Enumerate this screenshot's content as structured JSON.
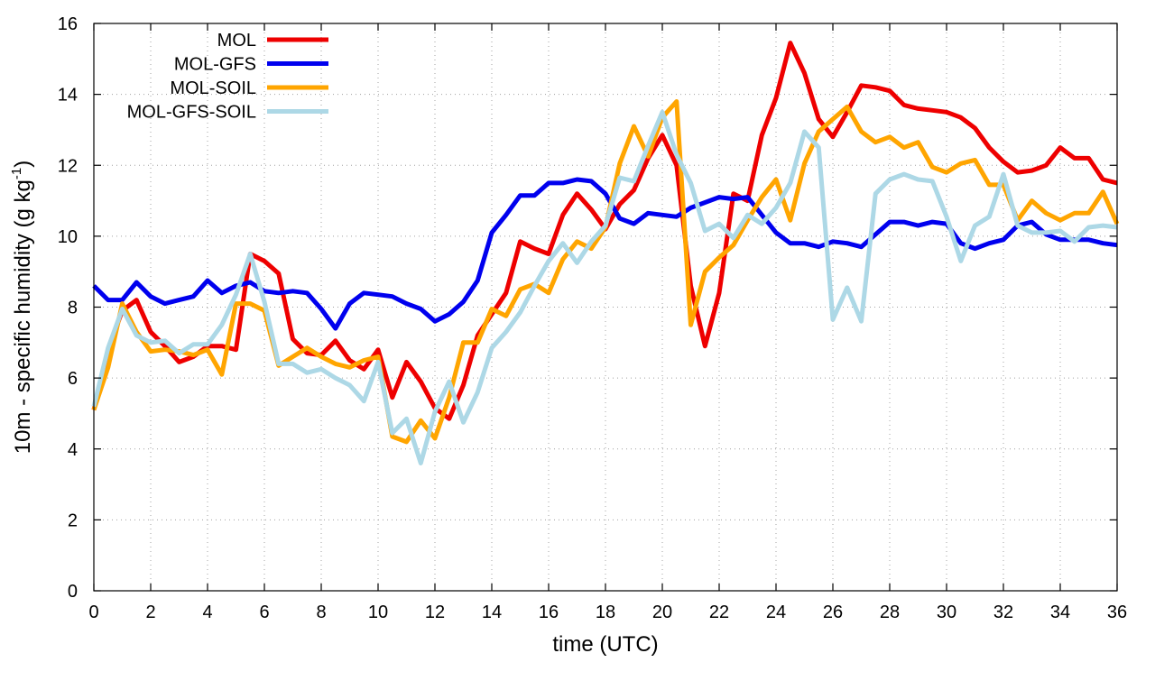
{
  "chart_data": {
    "type": "line",
    "title": "",
    "xlabel": "time (UTC)",
    "ylabel": {
      "main": "10m - specific humidity (g kg",
      "superscript": "-1",
      "suffix": ")"
    },
    "xlim": [
      0,
      36
    ],
    "ylim": [
      0,
      16
    ],
    "xticks": [
      0,
      2,
      4,
      6,
      8,
      10,
      12,
      14,
      16,
      18,
      20,
      22,
      24,
      26,
      28,
      30,
      32,
      34,
      36
    ],
    "yticks": [
      0,
      2,
      4,
      6,
      8,
      10,
      12,
      14,
      16
    ],
    "grid": true,
    "legend_position": "top-left",
    "x": [
      0,
      0.5,
      1,
      1.5,
      2,
      2.5,
      3,
      3.5,
      4,
      4.5,
      5,
      5.5,
      6,
      6.5,
      7,
      7.5,
      8,
      8.5,
      9,
      9.5,
      10,
      10.5,
      11,
      11.5,
      12,
      12.5,
      13,
      13.5,
      14,
      14.5,
      15,
      15.5,
      16,
      16.5,
      17,
      17.5,
      18,
      18.5,
      19,
      19.5,
      20,
      20.5,
      21,
      21.5,
      22,
      22.5,
      23,
      23.5,
      24,
      24.5,
      25,
      25.5,
      26,
      26.5,
      27,
      27.5,
      28,
      28.5,
      29,
      29.5,
      30,
      30.5,
      31,
      31.5,
      32,
      32.5,
      33,
      33.5,
      34,
      34.5,
      35,
      35.5,
      36
    ],
    "series": [
      {
        "name": "MOL",
        "color": "#ee0000",
        "values": [
          5.1,
          6.8,
          7.9,
          8.2,
          7.3,
          6.9,
          6.45,
          6.6,
          6.9,
          6.9,
          6.8,
          9.5,
          9.3,
          8.95,
          7.1,
          6.7,
          6.65,
          7.05,
          6.5,
          6.25,
          6.8,
          5.45,
          6.45,
          5.9,
          5.15,
          4.85,
          5.8,
          7.2,
          7.8,
          8.4,
          9.85,
          9.65,
          9.5,
          10.6,
          11.2,
          10.75,
          10.2,
          10.9,
          11.3,
          12.2,
          12.85,
          12.0,
          8.6,
          6.9,
          8.4,
          11.2,
          11.0,
          12.85,
          13.9,
          15.45,
          14.6,
          13.3,
          12.8,
          13.5,
          14.25,
          14.2,
          14.1,
          13.7,
          13.6,
          13.55,
          13.5,
          13.35,
          13.05,
          12.5,
          12.1,
          11.8,
          11.85,
          12.0,
          12.5,
          12.2,
          12.2,
          11.6,
          11.5
        ]
      },
      {
        "name": "MOL-GFS",
        "color": "#0000ee",
        "values": [
          8.6,
          8.2,
          8.2,
          8.7,
          8.3,
          8.1,
          8.2,
          8.3,
          8.75,
          8.4,
          8.6,
          8.7,
          8.45,
          8.4,
          8.45,
          8.4,
          7.95,
          7.4,
          8.1,
          8.4,
          8.35,
          8.3,
          8.1,
          7.95,
          7.6,
          7.8,
          8.15,
          8.75,
          10.1,
          10.6,
          11.15,
          11.15,
          11.5,
          11.5,
          11.6,
          11.55,
          11.2,
          10.5,
          10.35,
          10.65,
          10.6,
          10.55,
          10.8,
          10.95,
          11.1,
          11.05,
          11.1,
          10.6,
          10.1,
          9.8,
          9.8,
          9.7,
          9.85,
          9.8,
          9.7,
          10.05,
          10.4,
          10.4,
          10.3,
          10.4,
          10.35,
          9.8,
          9.65,
          9.8,
          9.9,
          10.3,
          10.4,
          10.05,
          9.9,
          9.9,
          9.9,
          9.8,
          9.75
        ]
      },
      {
        "name": "MOL-SOIL",
        "color": "#ffa500",
        "values": [
          5.1,
          6.3,
          8.1,
          7.3,
          6.75,
          6.8,
          6.75,
          6.65,
          6.8,
          6.1,
          8.1,
          8.1,
          7.9,
          6.35,
          6.6,
          6.85,
          6.6,
          6.4,
          6.3,
          6.5,
          6.6,
          4.35,
          4.2,
          4.8,
          4.3,
          5.45,
          7.0,
          7.0,
          7.95,
          7.75,
          8.5,
          8.65,
          8.4,
          9.35,
          9.85,
          9.65,
          10.25,
          12.05,
          13.1,
          12.25,
          13.35,
          13.8,
          7.5,
          9.0,
          9.4,
          9.75,
          10.45,
          11.1,
          11.6,
          10.45,
          12.05,
          12.95,
          13.3,
          13.65,
          12.95,
          12.65,
          12.8,
          12.5,
          12.65,
          11.95,
          11.8,
          12.05,
          12.15,
          11.45,
          11.45,
          10.45,
          11.0,
          10.65,
          10.45,
          10.65,
          10.65,
          11.25,
          10.35
        ]
      },
      {
        "name": "MOL-GFS-SOIL",
        "color": "#add8e6",
        "values": [
          5.2,
          6.85,
          7.95,
          7.2,
          7.0,
          7.05,
          6.7,
          6.95,
          6.95,
          7.5,
          8.35,
          9.5,
          8.15,
          6.4,
          6.4,
          6.15,
          6.25,
          6.0,
          5.8,
          5.35,
          6.45,
          4.45,
          4.85,
          3.6,
          5.05,
          5.9,
          4.75,
          5.6,
          6.85,
          7.3,
          7.85,
          8.6,
          9.3,
          9.8,
          9.25,
          9.85,
          10.3,
          11.65,
          11.55,
          12.55,
          13.5,
          12.3,
          11.5,
          10.15,
          10.35,
          9.95,
          10.6,
          10.35,
          10.8,
          11.5,
          12.95,
          12.5,
          7.65,
          8.55,
          7.6,
          11.2,
          11.6,
          11.75,
          11.6,
          11.55,
          10.55,
          9.3,
          10.3,
          10.55,
          11.75,
          10.3,
          10.1,
          10.1,
          10.15,
          9.85,
          10.25,
          10.3,
          10.25
        ]
      }
    ]
  }
}
